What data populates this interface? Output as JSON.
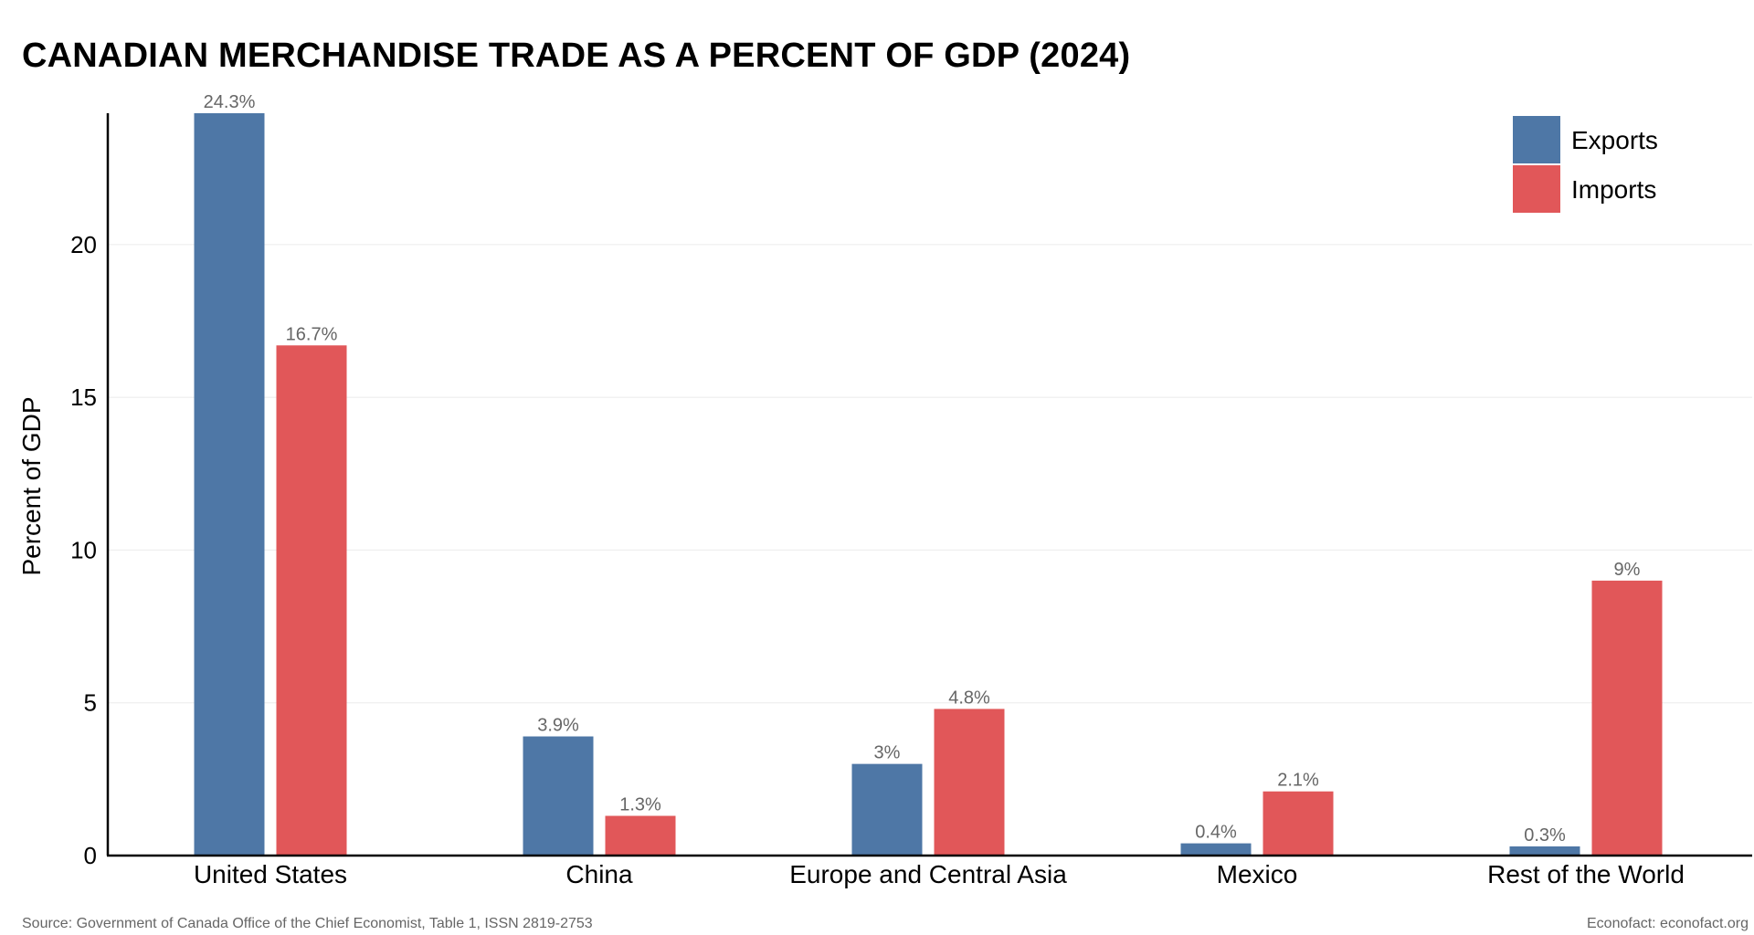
{
  "header": {
    "title": "CANADIAN MERCHANDISE TRADE AS A PERCENT OF GDP (2024)"
  },
  "footer": {
    "source": "Source: Government of Canada Office of the Chief Economist, Table 1, ISSN 2819-2753",
    "credit": "Econofact: econofact.org"
  },
  "chart_data": {
    "type": "bar",
    "title": "CANADIAN MERCHANDISE TRADE AS A PERCENT OF GDP (2024)",
    "xlabel": "",
    "ylabel": "Percent of GDP",
    "ylim": [
      0,
      24.3
    ],
    "yticks": [
      0,
      5,
      10,
      15,
      20
    ],
    "grid": true,
    "legend_position": "top-right",
    "categories": [
      "United States",
      "China",
      "Europe and Central Asia",
      "Mexico",
      "Rest of the World"
    ],
    "series": [
      {
        "name": "Exports",
        "color": "#4e77a6",
        "values": [
          24.3,
          3.9,
          3,
          0.4,
          0.3
        ],
        "labels": [
          "24.3%",
          "3.9%",
          "3%",
          "0.4%",
          "0.3%"
        ]
      },
      {
        "name": "Imports",
        "color": "#e15759",
        "values": [
          16.7,
          1.3,
          4.8,
          2.1,
          9
        ],
        "labels": [
          "16.7%",
          "1.3%",
          "4.8%",
          "2.1%",
          "9%"
        ]
      }
    ]
  }
}
